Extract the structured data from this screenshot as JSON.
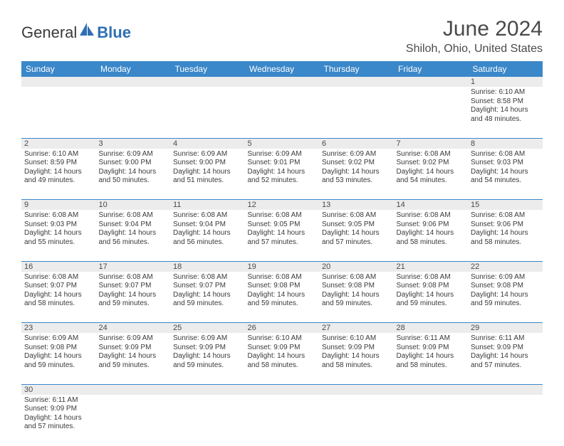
{
  "brand": {
    "part1": "General",
    "part2": "Blue"
  },
  "title": "June 2024",
  "location": "Shiloh, Ohio, United States",
  "colors": {
    "header_bg": "#3a87c9",
    "header_text": "#ffffff",
    "daynum_bg": "#ececec",
    "border": "#3a87c9",
    "text": "#3a3a3a",
    "brand_blue": "#2f6fb3"
  },
  "weekdays": [
    "Sunday",
    "Monday",
    "Tuesday",
    "Wednesday",
    "Thursday",
    "Friday",
    "Saturday"
  ],
  "weeks": [
    [
      null,
      null,
      null,
      null,
      null,
      null,
      {
        "n": "1",
        "sr": "Sunrise: 6:10 AM",
        "ss": "Sunset: 8:58 PM",
        "d1": "Daylight: 14 hours",
        "d2": "and 48 minutes."
      }
    ],
    [
      {
        "n": "2",
        "sr": "Sunrise: 6:10 AM",
        "ss": "Sunset: 8:59 PM",
        "d1": "Daylight: 14 hours",
        "d2": "and 49 minutes."
      },
      {
        "n": "3",
        "sr": "Sunrise: 6:09 AM",
        "ss": "Sunset: 9:00 PM",
        "d1": "Daylight: 14 hours",
        "d2": "and 50 minutes."
      },
      {
        "n": "4",
        "sr": "Sunrise: 6:09 AM",
        "ss": "Sunset: 9:00 PM",
        "d1": "Daylight: 14 hours",
        "d2": "and 51 minutes."
      },
      {
        "n": "5",
        "sr": "Sunrise: 6:09 AM",
        "ss": "Sunset: 9:01 PM",
        "d1": "Daylight: 14 hours",
        "d2": "and 52 minutes."
      },
      {
        "n": "6",
        "sr": "Sunrise: 6:09 AM",
        "ss": "Sunset: 9:02 PM",
        "d1": "Daylight: 14 hours",
        "d2": "and 53 minutes."
      },
      {
        "n": "7",
        "sr": "Sunrise: 6:08 AM",
        "ss": "Sunset: 9:02 PM",
        "d1": "Daylight: 14 hours",
        "d2": "and 54 minutes."
      },
      {
        "n": "8",
        "sr": "Sunrise: 6:08 AM",
        "ss": "Sunset: 9:03 PM",
        "d1": "Daylight: 14 hours",
        "d2": "and 54 minutes."
      }
    ],
    [
      {
        "n": "9",
        "sr": "Sunrise: 6:08 AM",
        "ss": "Sunset: 9:03 PM",
        "d1": "Daylight: 14 hours",
        "d2": "and 55 minutes."
      },
      {
        "n": "10",
        "sr": "Sunrise: 6:08 AM",
        "ss": "Sunset: 9:04 PM",
        "d1": "Daylight: 14 hours",
        "d2": "and 56 minutes."
      },
      {
        "n": "11",
        "sr": "Sunrise: 6:08 AM",
        "ss": "Sunset: 9:04 PM",
        "d1": "Daylight: 14 hours",
        "d2": "and 56 minutes."
      },
      {
        "n": "12",
        "sr": "Sunrise: 6:08 AM",
        "ss": "Sunset: 9:05 PM",
        "d1": "Daylight: 14 hours",
        "d2": "and 57 minutes."
      },
      {
        "n": "13",
        "sr": "Sunrise: 6:08 AM",
        "ss": "Sunset: 9:05 PM",
        "d1": "Daylight: 14 hours",
        "d2": "and 57 minutes."
      },
      {
        "n": "14",
        "sr": "Sunrise: 6:08 AM",
        "ss": "Sunset: 9:06 PM",
        "d1": "Daylight: 14 hours",
        "d2": "and 58 minutes."
      },
      {
        "n": "15",
        "sr": "Sunrise: 6:08 AM",
        "ss": "Sunset: 9:06 PM",
        "d1": "Daylight: 14 hours",
        "d2": "and 58 minutes."
      }
    ],
    [
      {
        "n": "16",
        "sr": "Sunrise: 6:08 AM",
        "ss": "Sunset: 9:07 PM",
        "d1": "Daylight: 14 hours",
        "d2": "and 58 minutes."
      },
      {
        "n": "17",
        "sr": "Sunrise: 6:08 AM",
        "ss": "Sunset: 9:07 PM",
        "d1": "Daylight: 14 hours",
        "d2": "and 59 minutes."
      },
      {
        "n": "18",
        "sr": "Sunrise: 6:08 AM",
        "ss": "Sunset: 9:07 PM",
        "d1": "Daylight: 14 hours",
        "d2": "and 59 minutes."
      },
      {
        "n": "19",
        "sr": "Sunrise: 6:08 AM",
        "ss": "Sunset: 9:08 PM",
        "d1": "Daylight: 14 hours",
        "d2": "and 59 minutes."
      },
      {
        "n": "20",
        "sr": "Sunrise: 6:08 AM",
        "ss": "Sunset: 9:08 PM",
        "d1": "Daylight: 14 hours",
        "d2": "and 59 minutes."
      },
      {
        "n": "21",
        "sr": "Sunrise: 6:08 AM",
        "ss": "Sunset: 9:08 PM",
        "d1": "Daylight: 14 hours",
        "d2": "and 59 minutes."
      },
      {
        "n": "22",
        "sr": "Sunrise: 6:09 AM",
        "ss": "Sunset: 9:08 PM",
        "d1": "Daylight: 14 hours",
        "d2": "and 59 minutes."
      }
    ],
    [
      {
        "n": "23",
        "sr": "Sunrise: 6:09 AM",
        "ss": "Sunset: 9:08 PM",
        "d1": "Daylight: 14 hours",
        "d2": "and 59 minutes."
      },
      {
        "n": "24",
        "sr": "Sunrise: 6:09 AM",
        "ss": "Sunset: 9:09 PM",
        "d1": "Daylight: 14 hours",
        "d2": "and 59 minutes."
      },
      {
        "n": "25",
        "sr": "Sunrise: 6:09 AM",
        "ss": "Sunset: 9:09 PM",
        "d1": "Daylight: 14 hours",
        "d2": "and 59 minutes."
      },
      {
        "n": "26",
        "sr": "Sunrise: 6:10 AM",
        "ss": "Sunset: 9:09 PM",
        "d1": "Daylight: 14 hours",
        "d2": "and 58 minutes."
      },
      {
        "n": "27",
        "sr": "Sunrise: 6:10 AM",
        "ss": "Sunset: 9:09 PM",
        "d1": "Daylight: 14 hours",
        "d2": "and 58 minutes."
      },
      {
        "n": "28",
        "sr": "Sunrise: 6:11 AM",
        "ss": "Sunset: 9:09 PM",
        "d1": "Daylight: 14 hours",
        "d2": "and 58 minutes."
      },
      {
        "n": "29",
        "sr": "Sunrise: 6:11 AM",
        "ss": "Sunset: 9:09 PM",
        "d1": "Daylight: 14 hours",
        "d2": "and 57 minutes."
      }
    ],
    [
      {
        "n": "30",
        "sr": "Sunrise: 6:11 AM",
        "ss": "Sunset: 9:09 PM",
        "d1": "Daylight: 14 hours",
        "d2": "and 57 minutes."
      },
      null,
      null,
      null,
      null,
      null,
      null
    ]
  ]
}
